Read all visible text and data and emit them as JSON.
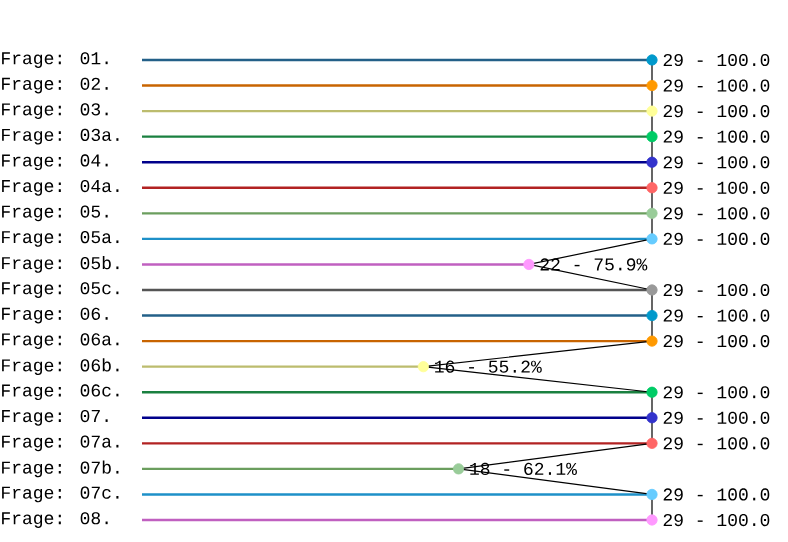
{
  "chart_data": {
    "type": "bar",
    "orientation": "horizontal",
    "categories": [
      "Frage: 01.",
      "Frage: 02.",
      "Frage: 03.",
      "Frage: 03a.",
      "Frage: 04.",
      "Frage: 04a.",
      "Frage: 05.",
      "Frage: 05a.",
      "Frage: 05b.",
      "Frage: 05c.",
      "Frage: 06.",
      "Frage: 06a.",
      "Frage: 06b.",
      "Frage: 06c.",
      "Frage: 07.",
      "Frage: 07a.",
      "Frage: 07b.",
      "Frage: 07c.",
      "Frage: 08."
    ],
    "series": [
      {
        "colors": [
          "#236088",
          "#c86400",
          "#bcbc6e",
          "#1a8040",
          "#00008b",
          "#b22222",
          "#6b9e5e",
          "#1e90c8",
          "#c060c0",
          "#555555",
          "#236088",
          "#c86400",
          "#bcbc6e",
          "#1a8040",
          "#00008b",
          "#b22222",
          "#6b9e5e",
          "#1e90c8",
          "#c060c0"
        ],
        "values": [
          29,
          29,
          29,
          29,
          29,
          29,
          29,
          29,
          22,
          29,
          29,
          29,
          16,
          29,
          29,
          29,
          18,
          29,
          29
        ]
      },
      {
        "type": "line",
        "color": "#000000",
        "values": [
          29,
          29,
          29,
          29,
          29,
          29,
          29,
          29,
          22,
          29,
          29,
          29,
          16,
          29,
          29,
          29,
          18,
          29,
          29
        ]
      },
      {
        "type": "scatter",
        "marker": "circle",
        "colors": [
          "#0099cc",
          "#ff9900",
          "#ffff99",
          "#00cc66",
          "#3333cc",
          "#ff6666",
          "#99cc99",
          "#66ccff",
          "#ff99ff",
          "#999999",
          "#0099cc",
          "#ff9900",
          "#ffff99",
          "#00cc66",
          "#3333cc",
          "#ff6666",
          "#99cc99",
          "#66ccff",
          "#ff99ff"
        ],
        "values": [
          29,
          29,
          29,
          29,
          29,
          29,
          29,
          29,
          22,
          29,
          29,
          29,
          16,
          29,
          29,
          29,
          18,
          29,
          29
        ],
        "value_labels": [
          "29 - 100.0",
          "29 - 100.0",
          "29 - 100.0",
          "29 - 100.0",
          "29 - 100.0",
          "29 - 100.0",
          "29 - 100.0",
          "29 - 100.0",
          "22 -  75.9%",
          "29 - 100.0",
          "29 - 100.0",
          "29 - 100.0",
          "16 -  55.2%",
          "29 - 100.0",
          "29 - 100.0",
          "29 - 100.0",
          "18 -  62.1%",
          "29 - 100.0",
          "29 - 100.0"
        ]
      }
    ]
  }
}
